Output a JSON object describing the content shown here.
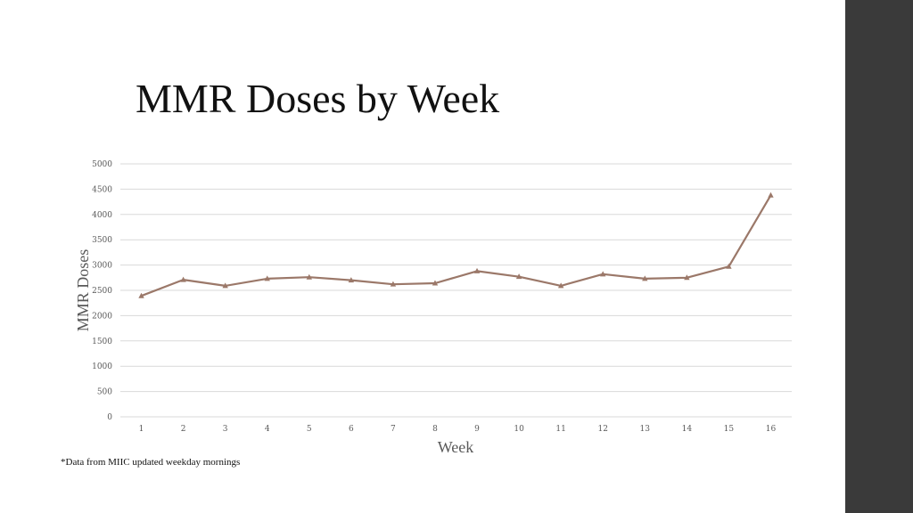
{
  "slide": {
    "title": "MMR Doses by Week",
    "footnote": "*Data from MIIC updated weekday mornings"
  },
  "colors": {
    "series": "#9b7869",
    "grid": "#d9d9d9",
    "sidebar": "#3a3a3a"
  },
  "chart_data": {
    "type": "line",
    "title": "",
    "xlabel": "Week",
    "ylabel": "MMR Doses",
    "categories": [
      "1",
      "2",
      "3",
      "4",
      "5",
      "6",
      "7",
      "8",
      "9",
      "10",
      "11",
      "12",
      "13",
      "14",
      "15",
      "16"
    ],
    "series": [
      {
        "name": "MMR Doses",
        "marker": "triangle",
        "values": [
          2390,
          2710,
          2590,
          2730,
          2760,
          2700,
          2620,
          2640,
          2880,
          2770,
          2590,
          2820,
          2730,
          2750,
          2970,
          4380
        ]
      }
    ],
    "ylim": [
      0,
      5000
    ],
    "yticks": [
      0,
      500,
      1000,
      1500,
      2000,
      2500,
      3000,
      3500,
      4000,
      4500,
      5000
    ],
    "grid": true,
    "legend": "none"
  }
}
